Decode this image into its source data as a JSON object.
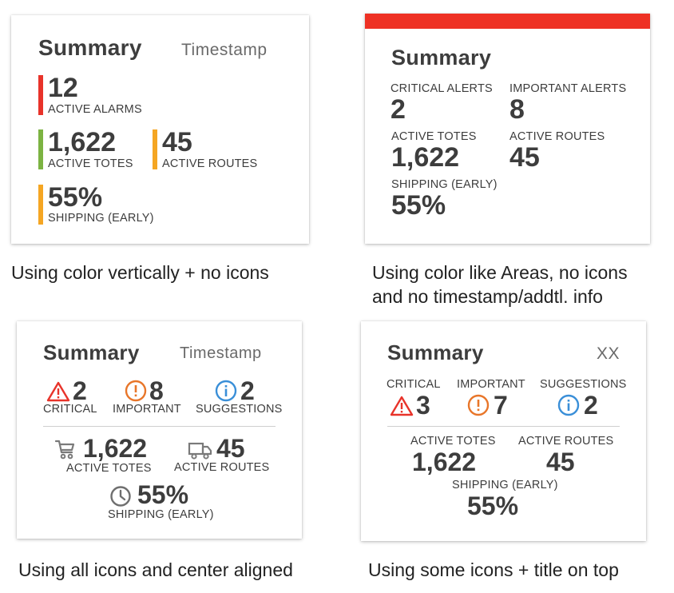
{
  "colors": {
    "alarm_red": "#e8332a",
    "ok_green": "#7cb342",
    "warn_amber": "#f5a623",
    "important_orange": "#e8762a",
    "info_blue": "#3a8fd8",
    "top_band_red": "#ee3124"
  },
  "card1": {
    "title": "Summary",
    "timestamp": "Timestamp",
    "alarms": {
      "value": "12",
      "label": "ACTIVE ALARMS"
    },
    "totes": {
      "value": "1,622",
      "label": "ACTIVE TOTES"
    },
    "routes": {
      "value": "45",
      "label": "ACTIVE ROUTES"
    },
    "shipping": {
      "value": "55%",
      "label": "SHIPPING (EARLY)"
    },
    "caption": "Using color vertically + no icons"
  },
  "card2": {
    "title": "Summary",
    "critical": {
      "label": "CRITICAL ALERTS",
      "value": "2"
    },
    "important": {
      "label": "IMPORTANT ALERTS",
      "value": "8"
    },
    "totes": {
      "label": "ACTIVE TOTES",
      "value": "1,622"
    },
    "routes": {
      "label": "ACTIVE ROUTES",
      "value": "45"
    },
    "shipping": {
      "label": "SHIPPING (EARLY)",
      "value": "55%"
    },
    "caption_line1": "Using color like Areas, no icons",
    "caption_line2": "and no timestamp/addtl. info"
  },
  "card3": {
    "title": "Summary",
    "timestamp": "Timestamp",
    "critical": {
      "value": "2",
      "label": "CRITICAL",
      "icon": "warning-triangle-icon"
    },
    "important": {
      "value": "8",
      "label": "IMPORTANT",
      "icon": "exclamation-circle-icon"
    },
    "suggestions": {
      "value": "2",
      "label": "SUGGESTIONS",
      "icon": "info-circle-icon"
    },
    "totes": {
      "value": "1,622",
      "label": "ACTIVE TOTES",
      "icon": "cart-icon"
    },
    "routes": {
      "value": "45",
      "label": "ACTIVE ROUTES",
      "icon": "truck-icon"
    },
    "shipping": {
      "value": "55%",
      "label": "SHIPPING (EARLY)",
      "icon": "clock-icon"
    },
    "caption": "Using all icons and center aligned"
  },
  "card4": {
    "title": "Summary",
    "extra": "XX",
    "critical": {
      "label": "CRITICAL",
      "value": "3",
      "icon": "warning-triangle-icon"
    },
    "important": {
      "label": "IMPORTANT",
      "value": "7",
      "icon": "exclamation-circle-icon"
    },
    "suggestions": {
      "label": "SUGGESTIONS",
      "value": "2",
      "icon": "info-circle-icon"
    },
    "totes": {
      "label": "ACTIVE TOTES",
      "value": "1,622"
    },
    "routes": {
      "label": "ACTIVE ROUTES",
      "value": "45"
    },
    "shipping": {
      "label": "SHIPPING (EARLY)",
      "value": "55%"
    },
    "caption": "Using some icons + title on top"
  }
}
